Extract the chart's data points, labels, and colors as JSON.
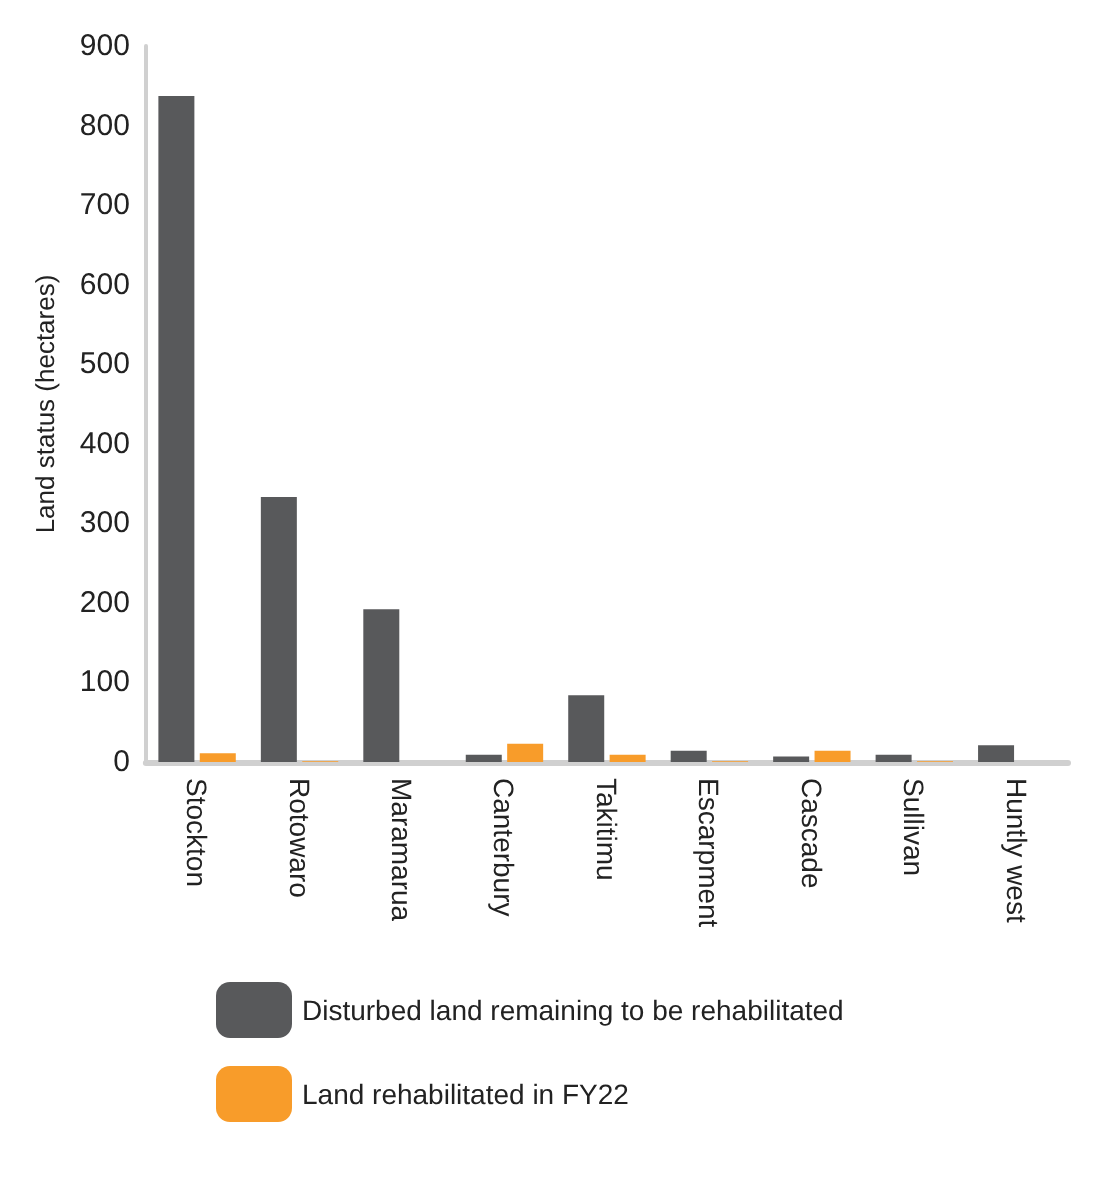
{
  "chart_data": {
    "type": "bar",
    "ylabel": "Land status (hectares)",
    "categories": [
      "Stockton",
      "Rotowaro",
      "Maramarua",
      "Canterbury",
      "Takitimu",
      "Escarpment",
      "Cascade",
      "Sullivan",
      "Huntly west"
    ],
    "series": [
      {
        "name": "Disturbed land remaining to be rehabilitated",
        "color": "#58595b",
        "values": [
          837,
          333,
          192,
          9,
          84,
          14,
          7,
          9,
          21
        ]
      },
      {
        "name": "Land rehabilitated in FY22",
        "color": "#f89c2a",
        "values": [
          11,
          1,
          0,
          23,
          9,
          1,
          14,
          1,
          0
        ]
      }
    ],
    "ylim": [
      0,
      900
    ],
    "yticks": [
      0,
      100,
      200,
      300,
      400,
      500,
      600,
      700,
      800,
      900
    ],
    "grid": false,
    "legend": "bottom"
  }
}
